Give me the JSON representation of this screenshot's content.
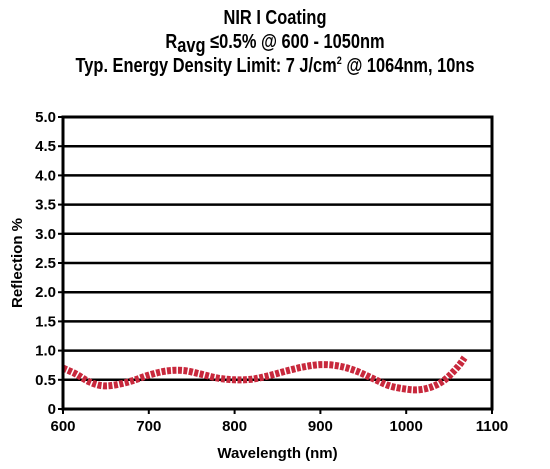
{
  "chart_data": {
    "type": "line",
    "title": "NIR I Coating",
    "subtitle_main": "R",
    "subtitle_sub": "avg",
    "subtitle_rest": " ≤0.5% @ 600 - 1050nm",
    "subtitle2_pre": "Typ. Energy Density Limit: 7 J/cm",
    "subtitle2_sup": "2",
    "subtitle2_post": " @ 1064nm, 10ns",
    "xlabel": "Wavelength (nm)",
    "ylabel": "Reflection %",
    "xlim": [
      600,
      1100
    ],
    "ylim": [
      0,
      5.0
    ],
    "xticks": [
      "600",
      "700",
      "800",
      "900",
      "1000",
      "1100"
    ],
    "yticks": [
      "0",
      "0.5",
      "1.0",
      "1.5",
      "2.0",
      "2.5",
      "3.0",
      "3.5",
      "4.0",
      "4.5",
      "5.0"
    ],
    "grid": "horizontal",
    "series": [
      {
        "color": "#c8283c",
        "style": "dashed-thick",
        "x": [
          600,
          615,
          630,
          645,
          660,
          680,
          700,
          720,
          740,
          760,
          780,
          800,
          820,
          840,
          860,
          880,
          900,
          920,
          940,
          960,
          980,
          1000,
          1015,
          1030,
          1045,
          1060,
          1068
        ],
        "y": [
          0.7,
          0.6,
          0.47,
          0.4,
          0.41,
          0.48,
          0.58,
          0.65,
          0.66,
          0.6,
          0.53,
          0.5,
          0.51,
          0.57,
          0.65,
          0.72,
          0.76,
          0.74,
          0.66,
          0.53,
          0.4,
          0.34,
          0.33,
          0.38,
          0.5,
          0.72,
          0.88
        ]
      }
    ]
  }
}
